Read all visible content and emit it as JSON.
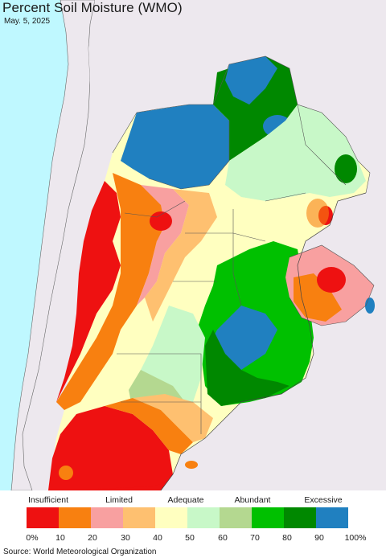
{
  "title": "Percent Soil Moisture (WMO)",
  "date": "May. 5, 2025",
  "source": "Source: World Meteorological Organization",
  "legend": {
    "categories": [
      "Insufficient",
      "Limited",
      "Adequate",
      "Abundant",
      "Excessive"
    ],
    "colors": [
      "#ee1111",
      "#f88010",
      "#f8a0a0",
      "#fec070",
      "#ffffc0",
      "#c8f8c8",
      "#b4d890",
      "#00c000",
      "#008800",
      "#2080c0"
    ],
    "ticks": [
      "0%",
      "10",
      "20",
      "30",
      "40",
      "50",
      "60",
      "70",
      "80",
      "90",
      "100%"
    ]
  },
  "map_colors": {
    "ocean": "#bff8ff",
    "neighbor_land": "#ede8ee",
    "border": "#555555"
  }
}
